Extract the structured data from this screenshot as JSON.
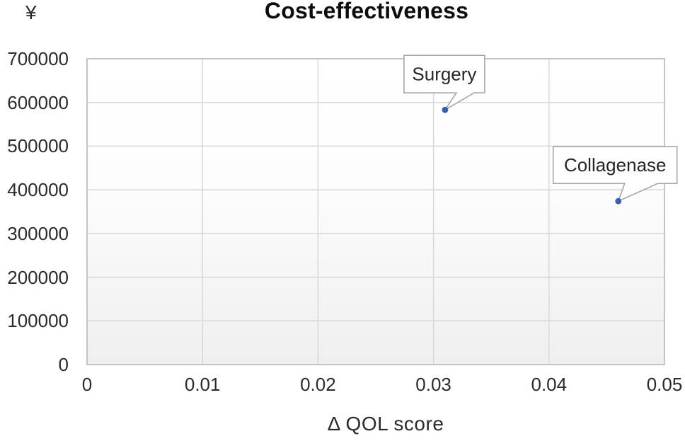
{
  "chart_data": {
    "type": "scatter",
    "title": "Cost-effectiveness",
    "xlabel": "Δ QOL score",
    "ylabel": "¥",
    "y_unit_label": "¥",
    "xlim": [
      0,
      0.05
    ],
    "ylim": [
      0,
      700000
    ],
    "x_ticks": [
      0,
      0.01,
      0.02,
      0.03,
      0.04,
      0.05
    ],
    "y_ticks": [
      0,
      100000,
      200000,
      300000,
      400000,
      500000,
      600000,
      700000
    ],
    "grid": true,
    "legend": "none",
    "points": [
      {
        "label": "Surgery",
        "x": 0.031,
        "y": 583000
      },
      {
        "label": "Collagenase",
        "x": 0.046,
        "y": 374000
      }
    ],
    "colors": {
      "marker": "#3561AE",
      "gridline": "#D8D8D8",
      "plot_border": "#BFBFBF",
      "callout_border": "#A6A6A6",
      "callout_fill": "#FFFFFF",
      "tick_text": "#2B2B2B",
      "title_text": "#0D0D0D"
    }
  }
}
